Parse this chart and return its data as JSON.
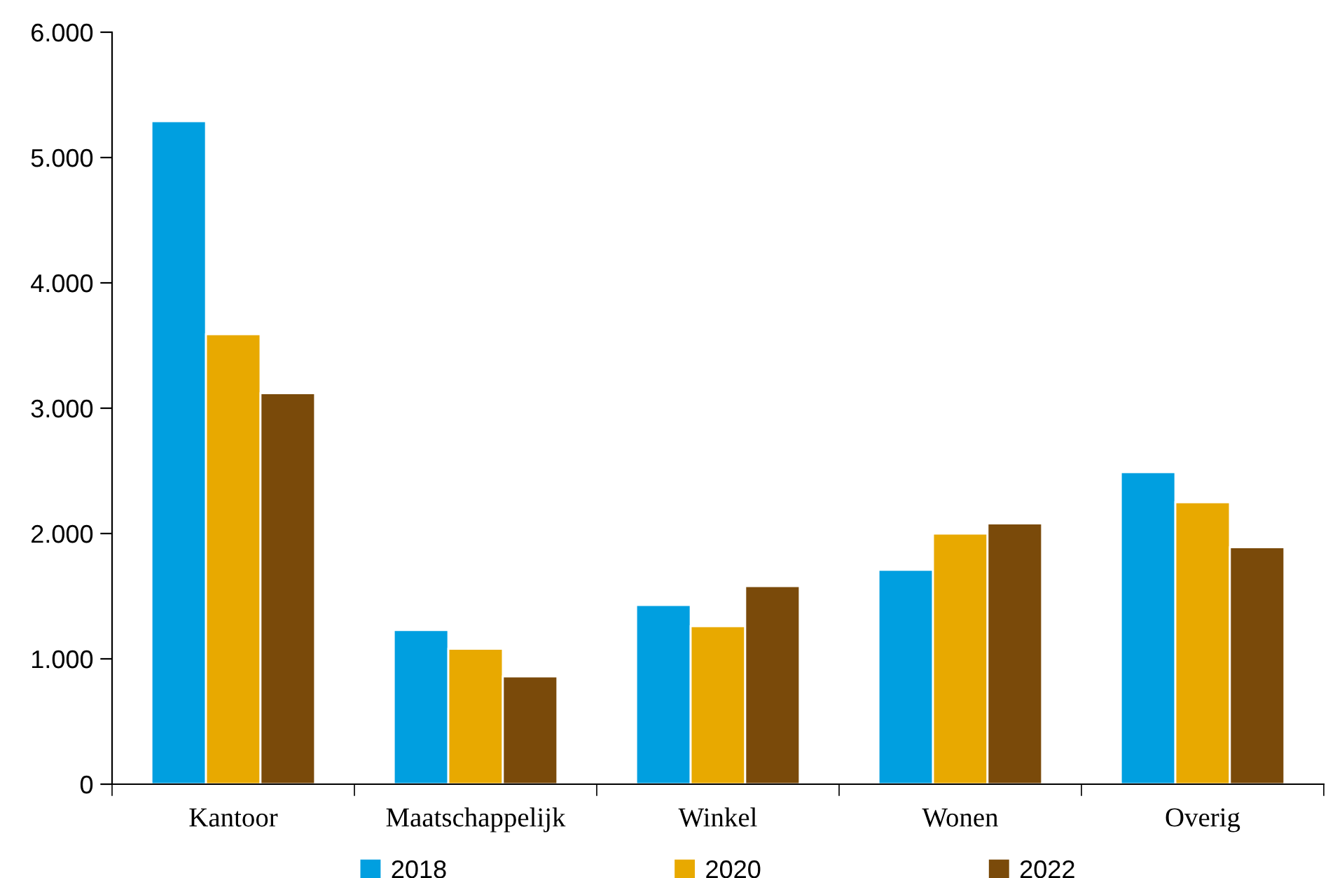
{
  "chart_data": {
    "type": "bar",
    "categories": [
      "Kantoor",
      "Maatschappelijk",
      "Winkel",
      "Wonen",
      "Overig"
    ],
    "series": [
      {
        "name": "2018",
        "color": "#009fe0",
        "values": [
          5290,
          1230,
          1430,
          1710,
          2490
        ]
      },
      {
        "name": "2020",
        "color": "#e8a900",
        "values": [
          3590,
          1080,
          1260,
          2000,
          2250
        ]
      },
      {
        "name": "2022",
        "color": "#7a4a0a",
        "values": [
          3120,
          860,
          1580,
          2080,
          1890
        ]
      }
    ],
    "ylim": [
      0,
      6000
    ],
    "yticks": [
      0,
      {
        "value": 1000,
        "label": "1.000"
      },
      {
        "value": 2000,
        "label": "2.000"
      },
      {
        "value": 3000,
        "label": "3.000"
      },
      {
        "value": 4000,
        "label": "4.000"
      },
      {
        "value": 5000,
        "label": "5.000"
      },
      {
        "value": 6000,
        "label": "6.000"
      }
    ],
    "grid": false,
    "legend": "bottom"
  }
}
